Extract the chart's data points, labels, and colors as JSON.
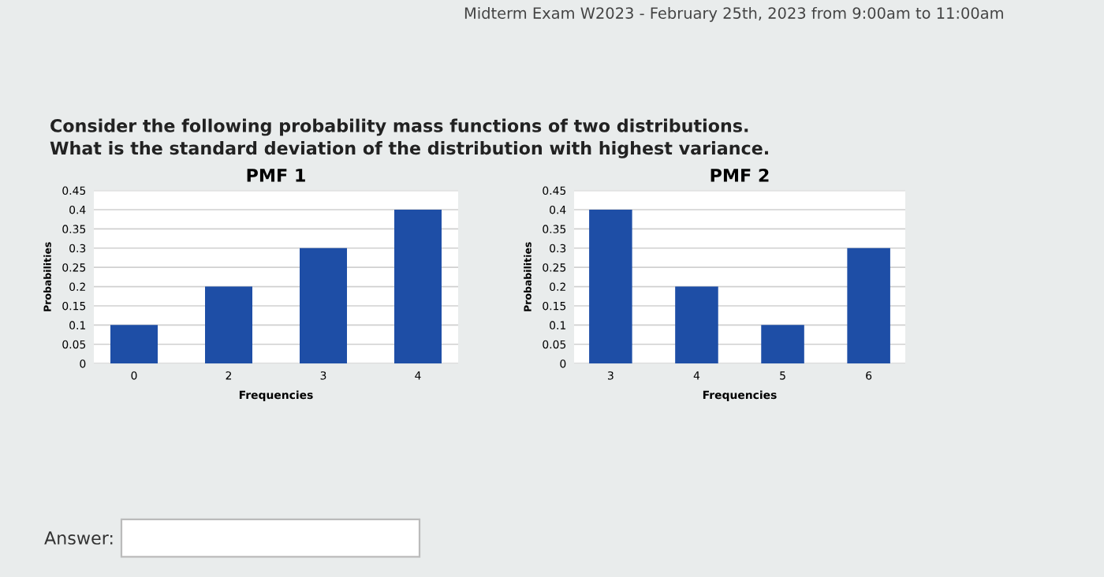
{
  "chart_data": [
    {
      "type": "bar",
      "title": "PMF 1",
      "xlabel": "Frequencies",
      "ylabel": "Probabilities",
      "categories": [
        "0",
        "2",
        "3",
        "4"
      ],
      "values": [
        0.1,
        0.2,
        0.3,
        0.4
      ],
      "color": "#1e4ea6",
      "ylim": [
        0,
        0.45
      ],
      "yticks": [
        0,
        0.05,
        0.1,
        0.15,
        0.2,
        0.25,
        0.3,
        0.35,
        0.4,
        0.45
      ],
      "grid": "y",
      "annotations": [
        "Midterm Exam W2023 - February 25th, 2023 from 9:00am to 11:00am",
        "Consider the following probability mass functions of two distributions.\nWhat is the standard deviation of the distribution with highest variance.",
        "Answer:"
      ]
    },
    {
      "type": "bar",
      "title": "PMF 2",
      "xlabel": "Frequencies",
      "ylabel": "Probabilities",
      "categories": [
        "3",
        "4",
        "5",
        "6"
      ],
      "values": [
        0.4,
        0.2,
        0.1,
        0.3
      ],
      "color": "#1e4ea6",
      "ylim": [
        0,
        0.45
      ],
      "yticks": [
        0,
        0.05,
        0.1,
        0.15,
        0.2,
        0.25,
        0.3,
        0.35,
        0.4,
        0.45
      ],
      "grid": "y"
    }
  ]
}
